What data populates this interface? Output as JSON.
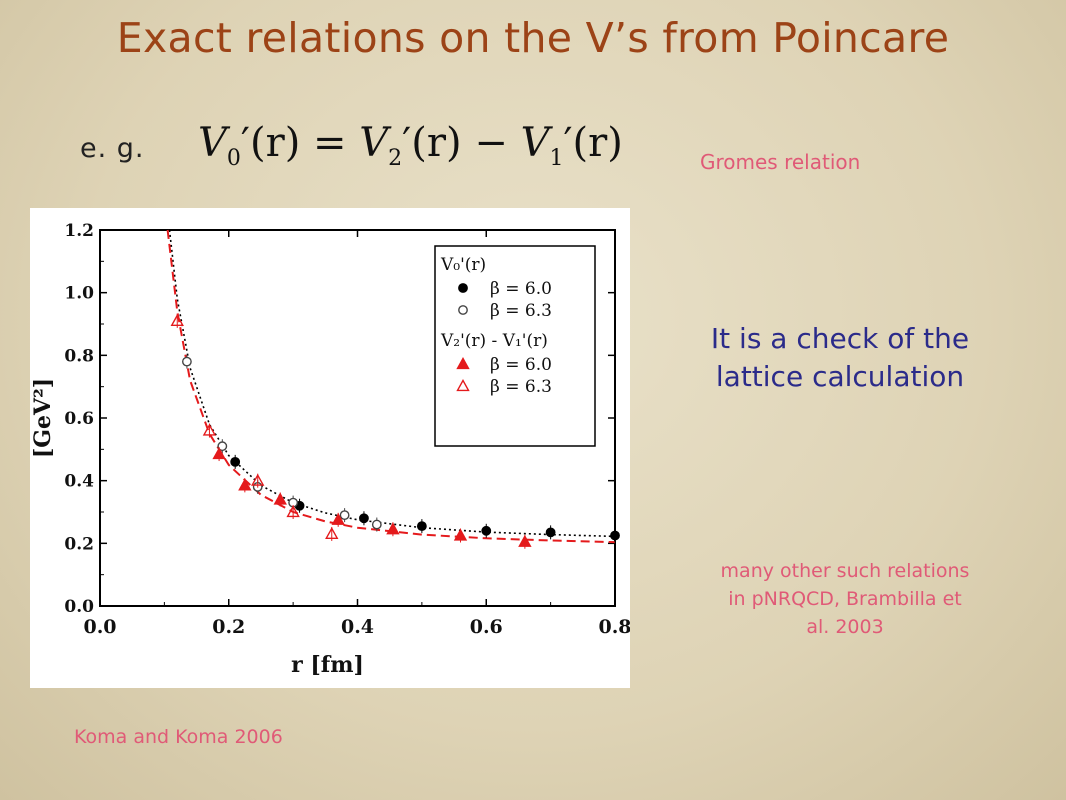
{
  "slide": {
    "title": "Exact relations on the V’s from Poincare",
    "eg_label": "e. g.",
    "formula": {
      "lhs": "V",
      "lhs_sub": "0",
      "arg": "(r)",
      "eq": "=",
      "t1": "V",
      "t1_sub": "2",
      "minus": "−",
      "t2": "V",
      "t2_sub": "1"
    },
    "gromes_note": "Gromes relation",
    "check_note_line1": "It is a check  of the",
    "check_note_line2": "lattice calculation",
    "many_note_line1": "many other such relations",
    "many_note_line2": "in pNRQCD, Brambilla et",
    "many_note_line3": "al. 2003",
    "credit": "Koma and Koma 2006"
  },
  "chart_data": {
    "type": "scatter",
    "xlabel": "r  [fm]",
    "ylabel": "[GeV²]",
    "xlim": [
      0.0,
      0.8
    ],
    "ylim": [
      0.0,
      1.2
    ],
    "xticks": [
      "0.0",
      "0.2",
      "0.4",
      "0.6",
      "0.8"
    ],
    "yticks": [
      "0.0",
      "0.2",
      "0.4",
      "0.6",
      "0.8",
      "1.0",
      "1.2"
    ],
    "legend_placement": "top-right",
    "legend_groups": [
      {
        "heading": "V₀'(r)",
        "entries": [
          "β = 6.0",
          "β = 6.3"
        ]
      },
      {
        "heading": "V₂'(r) - V₁'(r)",
        "entries": [
          "β = 6.0",
          "β = 6.3"
        ]
      }
    ],
    "series": [
      {
        "name": "V0'(r) β = 6.0",
        "marker": "filled-circle",
        "color": "#000000",
        "x": [
          0.21,
          0.31,
          0.41,
          0.5,
          0.6,
          0.7,
          0.8
        ],
        "y": [
          0.46,
          0.32,
          0.28,
          0.255,
          0.24,
          0.235,
          0.225
        ]
      },
      {
        "name": "V0'(r) β = 6.3",
        "marker": "open-circle",
        "color": "#444444",
        "x": [
          0.135,
          0.19,
          0.245,
          0.3,
          0.38,
          0.43
        ],
        "y": [
          0.78,
          0.51,
          0.38,
          0.33,
          0.29,
          0.26
        ]
      },
      {
        "name": "V2'(r) - V1'(r) β = 6.0",
        "marker": "filled-triangle",
        "color": "#e41a1c",
        "x": [
          0.185,
          0.225,
          0.28,
          0.37,
          0.455,
          0.56,
          0.66
        ],
        "y": [
          0.485,
          0.385,
          0.34,
          0.275,
          0.245,
          0.225,
          0.205
        ]
      },
      {
        "name": "V2'(r) - V1'(r) β = 6.3",
        "marker": "open-triangle",
        "color": "#e41a1c",
        "x": [
          0.12,
          0.17,
          0.245,
          0.3,
          0.36
        ],
        "y": [
          0.91,
          0.56,
          0.4,
          0.3,
          0.23
        ]
      }
    ],
    "curves": [
      {
        "style": "dotted",
        "color": "#000000",
        "x": [
          0.108,
          0.12,
          0.14,
          0.17,
          0.2,
          0.25,
          0.3,
          0.35,
          0.4,
          0.5,
          0.6,
          0.7,
          0.8
        ],
        "y": [
          1.2,
          0.98,
          0.76,
          0.58,
          0.48,
          0.385,
          0.33,
          0.297,
          0.275,
          0.25,
          0.236,
          0.228,
          0.222
        ]
      },
      {
        "style": "dashed",
        "color": "#e41a1c",
        "x": [
          0.105,
          0.12,
          0.14,
          0.17,
          0.2,
          0.25,
          0.3,
          0.35,
          0.4,
          0.5,
          0.6,
          0.7,
          0.8
        ],
        "y": [
          1.2,
          0.94,
          0.72,
          0.55,
          0.45,
          0.355,
          0.3,
          0.27,
          0.25,
          0.228,
          0.216,
          0.209,
          0.204
        ]
      }
    ]
  }
}
